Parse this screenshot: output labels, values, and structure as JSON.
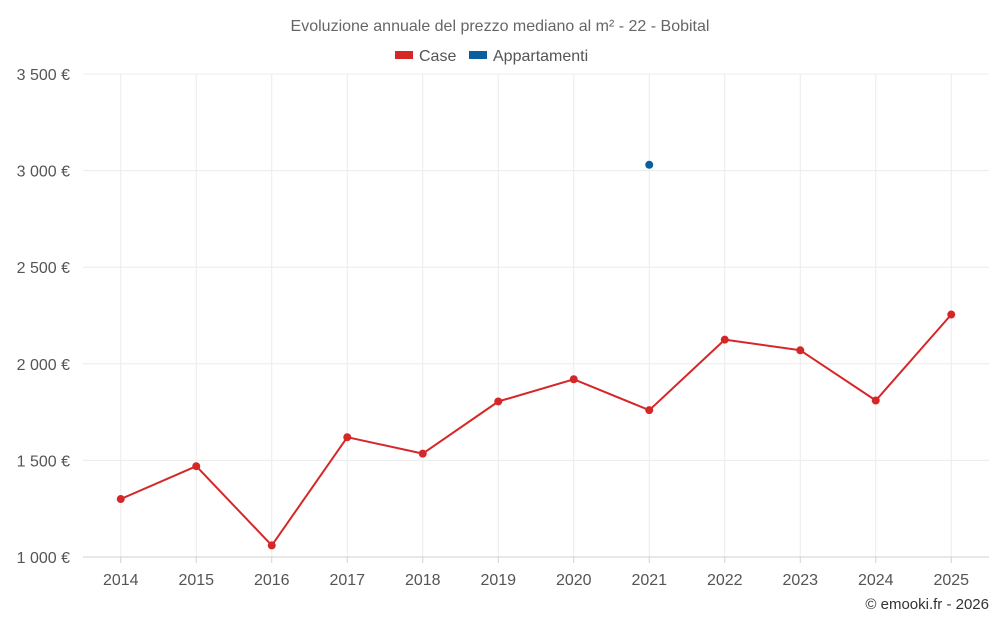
{
  "chart_data": {
    "type": "line",
    "title": "Evoluzione annuale del prezzo mediano al m² - 22 - Bobital",
    "categories": [
      "2014",
      "2015",
      "2016",
      "2017",
      "2018",
      "2019",
      "2020",
      "2021",
      "2022",
      "2023",
      "2024",
      "2025"
    ],
    "series": [
      {
        "name": "Case",
        "color": "#d62728",
        "values": [
          1300,
          1470,
          1060,
          1620,
          1535,
          1805,
          1920,
          1760,
          2125,
          2070,
          1810,
          2255
        ]
      },
      {
        "name": "Appartamenti",
        "color": "#0b5f9e",
        "values": [
          null,
          null,
          null,
          null,
          null,
          null,
          null,
          3030,
          null,
          null,
          null,
          null
        ]
      }
    ],
    "ylim": [
      1000,
      3500
    ],
    "yticks": [
      1000,
      1500,
      2000,
      2500,
      3000,
      3500
    ],
    "ytick_labels": [
      "1 000 €",
      "1 500 €",
      "2 000 €",
      "2 500 €",
      "3 000 €",
      "3 500 €"
    ],
    "grid": true,
    "legend": "top-center",
    "xlabel": "",
    "ylabel": ""
  },
  "credit": "© emooki.fr - 2026"
}
